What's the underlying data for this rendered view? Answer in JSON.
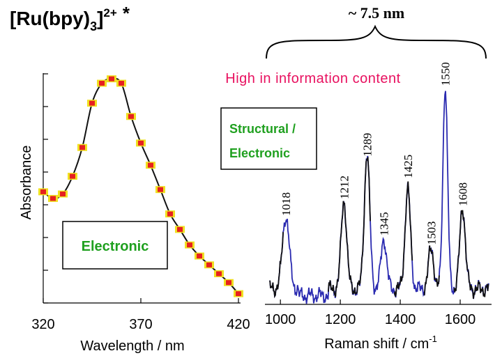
{
  "title": {
    "main": "[Ru(bpy)",
    "sub": "3",
    "close": "]",
    "sup": "2+",
    "star": "*"
  },
  "size_label": "~ 7.5 nm",
  "info_label": "High in information content",
  "colors": {
    "info_text": "#e8105f",
    "label_green": "#1fa01f",
    "curve_black": "#111111",
    "spectrum_blue": "#2a2ab0",
    "marker_red": "#e62020",
    "marker_yellow": "#f0e020"
  },
  "chart_data": [
    {
      "type": "scatter",
      "xlabel": "Wavelength  / nm",
      "ylabel": "Absorbance",
      "x_ticks": [
        "320",
        "370",
        "420"
      ],
      "xlim": [
        320,
        420
      ],
      "ylim": [
        0,
        1
      ],
      "box_label": "Electronic",
      "series": [
        {
          "x": [
            320,
            325,
            330,
            335,
            340,
            345,
            350,
            355,
            360,
            365,
            370,
            375,
            380,
            385,
            390,
            395,
            400,
            405,
            410,
            415,
            420
          ],
          "y": [
            0.48,
            0.45,
            0.47,
            0.55,
            0.68,
            0.88,
            0.97,
            0.99,
            0.97,
            0.82,
            0.7,
            0.6,
            0.49,
            0.38,
            0.31,
            0.24,
            0.19,
            0.15,
            0.11,
            0.07,
            0.02
          ]
        }
      ]
    },
    {
      "type": "line",
      "xlabel": "Raman shift / cm",
      "xlabel_sup": "-1",
      "x_ticks": [
        "1000",
        "1200",
        "1400",
        "1600"
      ],
      "xlim": [
        960,
        1700
      ],
      "ylim": [
        0,
        1
      ],
      "box_label_line1": "Structural /",
      "box_label_line2": "Electronic",
      "peaks": [
        {
          "label": "1018",
          "x": 1018,
          "y": 0.39
        },
        {
          "label": "1212",
          "x": 1212,
          "y": 0.46
        },
        {
          "label": "1289",
          "x": 1289,
          "y": 0.67
        },
        {
          "label": "1345",
          "x": 1345,
          "y": 0.29
        },
        {
          "label": "1425",
          "x": 1425,
          "y": 0.51
        },
        {
          "label": "1503",
          "x": 1503,
          "y": 0.24
        },
        {
          "label": "1550",
          "x": 1550,
          "y": 0.98
        },
        {
          "label": "1608",
          "x": 1608,
          "y": 0.43
        }
      ]
    }
  ]
}
